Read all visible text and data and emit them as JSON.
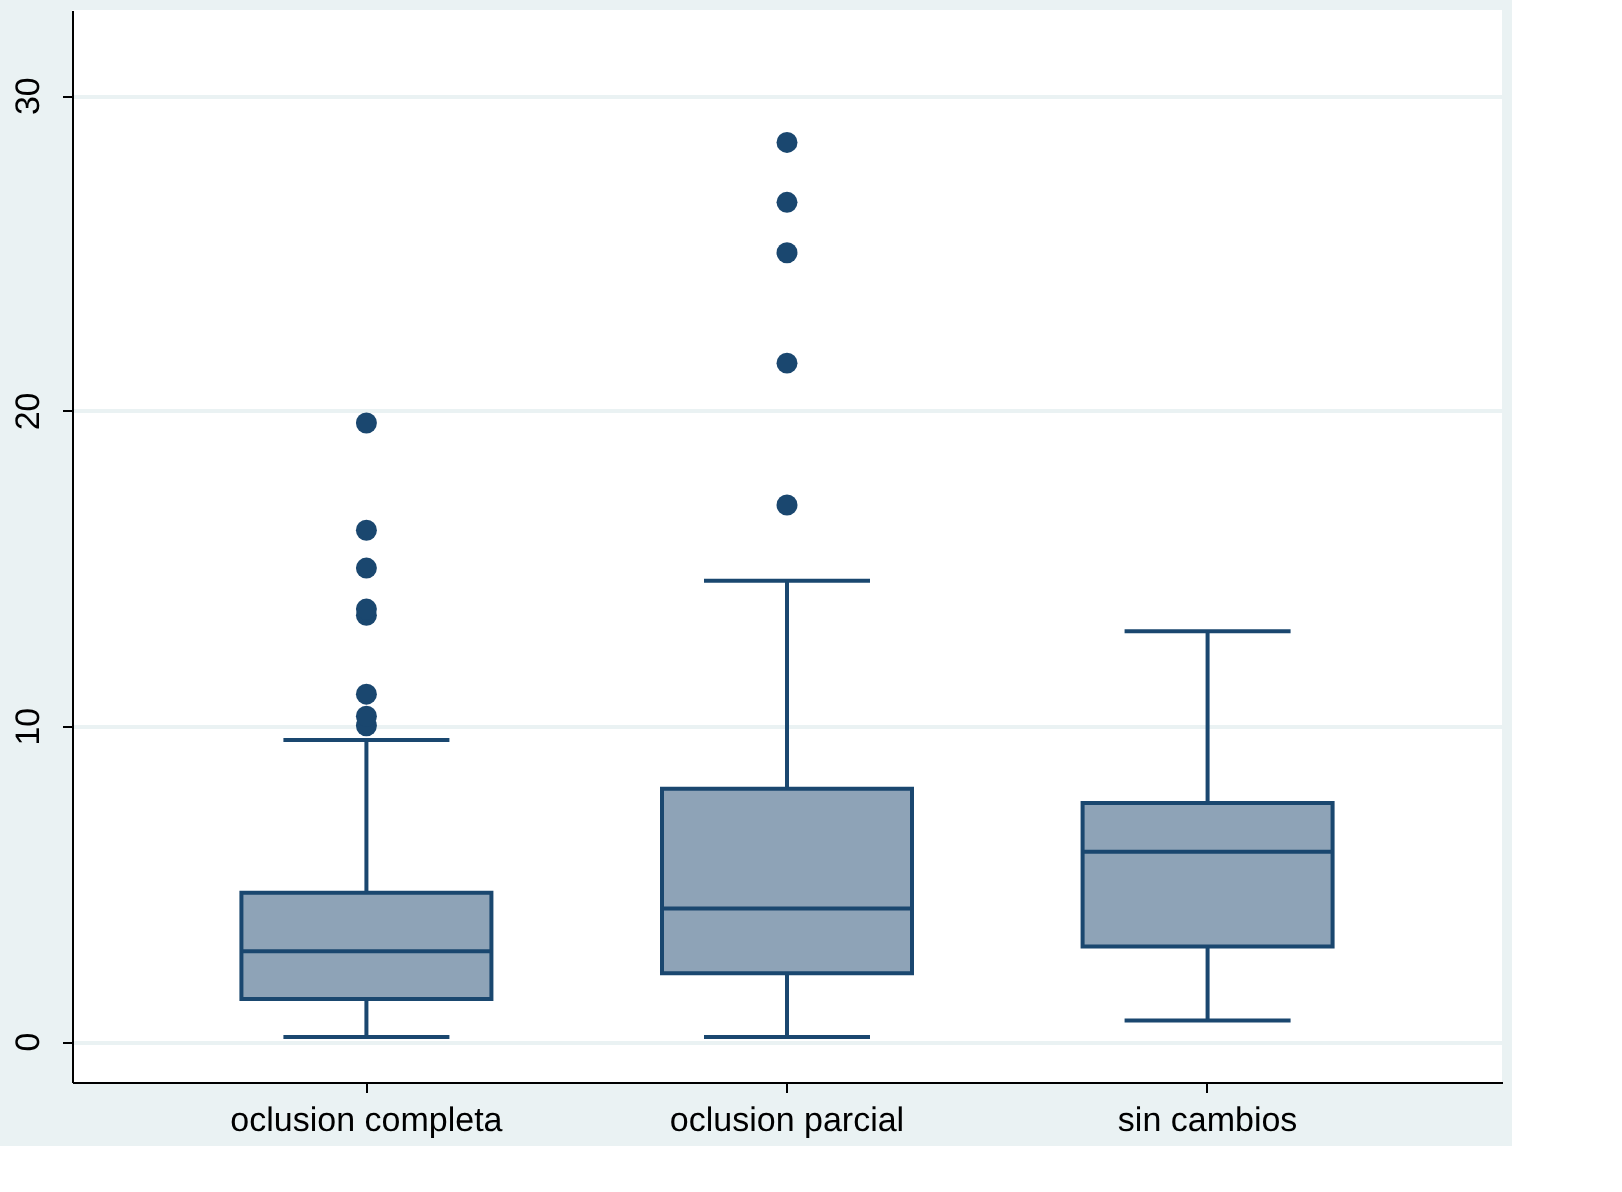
{
  "chart_data": {
    "type": "box",
    "categories": [
      "oclusion completa",
      "oclusion parcial",
      "sin cambios"
    ],
    "boxes": [
      {
        "low": 0.13,
        "q1": 1.33,
        "median": 2.85,
        "q3": 4.7,
        "high": 9.55,
        "outliers": [
          10.0,
          10.3,
          11.0,
          13.5,
          13.7,
          15.0,
          16.2,
          19.6
        ]
      },
      {
        "low": 0.13,
        "q1": 2.15,
        "median": 4.2,
        "q3": 8.0,
        "high": 14.6,
        "outliers": [
          17.0,
          21.5,
          25.0,
          26.6,
          28.5
        ]
      },
      {
        "low": 0.65,
        "q1": 3.0,
        "median": 6.0,
        "q3": 7.55,
        "high": 13.0
      }
    ],
    "color": "#8ea3b7",
    "ylim": [
      -1.3,
      32.7
    ],
    "yticks": [
      0,
      10,
      20,
      30
    ],
    "grid": "y"
  }
}
